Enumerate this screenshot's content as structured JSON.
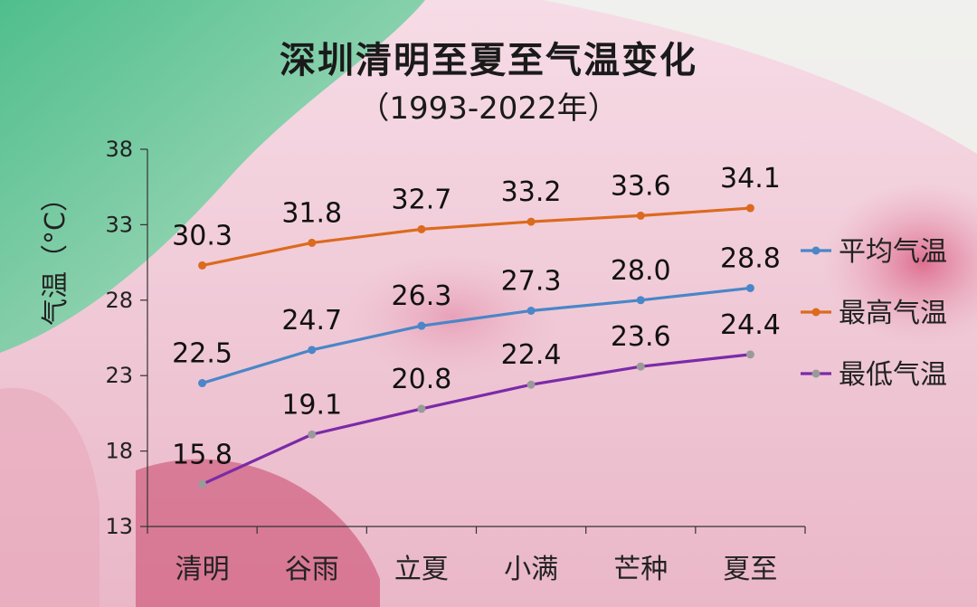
{
  "chart_data": {
    "type": "line",
    "title": "深圳清明至夏至气温变化",
    "subtitle": "（1993-2022年）",
    "ylabel": "气温（°C）",
    "ylim": [
      13,
      38
    ],
    "yticks": [
      13,
      18,
      23,
      28,
      33,
      38
    ],
    "grid": false,
    "legend_position": "right",
    "categories": [
      "清明",
      "谷雨",
      "立夏",
      "小满",
      "芒种",
      "夏至"
    ],
    "series": [
      {
        "name": "平均气温",
        "values": [
          22.5,
          24.7,
          26.3,
          27.3,
          28.0,
          28.8
        ],
        "color": "#4a86c8",
        "marker_color": "#4a86c8",
        "labels": [
          "22.5",
          "24.7",
          "26.3",
          "27.3",
          "28.0",
          "28.8"
        ]
      },
      {
        "name": "最高气温",
        "values": [
          30.3,
          31.8,
          32.7,
          33.2,
          33.6,
          34.1
        ],
        "color": "#dc6a1e",
        "marker_color": "#dc6a1e",
        "labels": [
          "30.3",
          "31.8",
          "32.7",
          "33.2",
          "33.6",
          "34.1"
        ]
      },
      {
        "name": "最低气温",
        "values": [
          15.8,
          19.1,
          20.8,
          22.4,
          23.6,
          24.4
        ],
        "color": "#7b2aa8",
        "marker_color": "#9a9a9a",
        "labels": [
          "15.8",
          "19.1",
          "20.8",
          "22.4",
          "23.6",
          "24.4"
        ]
      }
    ]
  }
}
